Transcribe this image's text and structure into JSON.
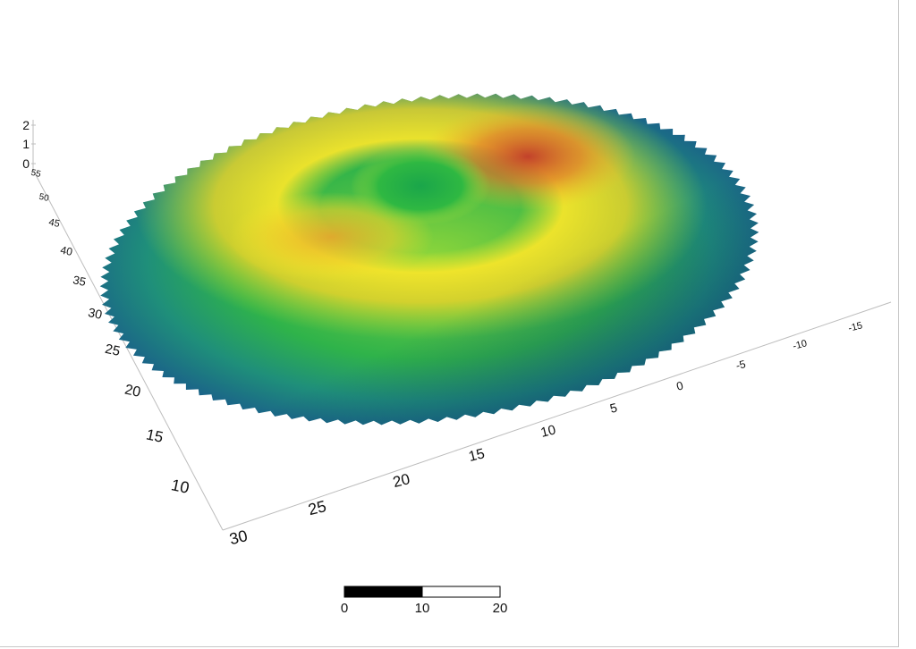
{
  "chart_data": {
    "type": "surface-3d",
    "title": "",
    "xlabel": "",
    "ylabel": "",
    "zlabel": "",
    "x_axis": {
      "ticks": [
        "30",
        "25",
        "20",
        "15",
        "10",
        "5",
        "0",
        "-5",
        "-10",
        "-15"
      ]
    },
    "y_axis": {
      "ticks": [
        "10",
        "15",
        "20",
        "25",
        "30",
        "35",
        "40",
        "45",
        "50",
        "55"
      ]
    },
    "z_axis": {
      "ticks": [
        "0",
        "1",
        "2"
      ]
    },
    "colormap": [
      "#0b2f6b",
      "#1d6f8a",
      "#22b04a",
      "#7fd13a",
      "#f2e824",
      "#e89a2a",
      "#c0392b"
    ],
    "surface": {
      "shape": "ring-shaped mound with central depression",
      "z_range": [
        0,
        2
      ]
    },
    "scale_bar": {
      "ticks": [
        "0",
        "10",
        "20"
      ],
      "segments": [
        [
          0,
          10,
          "#000000"
        ],
        [
          10,
          20,
          "#ffffff"
        ]
      ]
    }
  }
}
